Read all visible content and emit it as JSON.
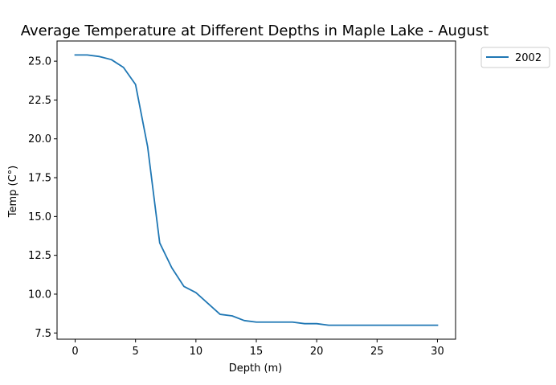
{
  "chart_data": {
    "type": "line",
    "title": "Average Temperature at Different Depths in Maple Lake - August",
    "xlabel": "Depth (m)",
    "ylabel": "Temp (C°)",
    "xlim": [
      -1.5,
      31.5
    ],
    "ylim": [
      7.1,
      26.3
    ],
    "x_ticks": [
      0,
      5,
      10,
      15,
      20,
      25,
      30
    ],
    "x_tick_labels": [
      "0",
      "5",
      "10",
      "15",
      "20",
      "25",
      "30"
    ],
    "y_ticks": [
      7.5,
      10.0,
      12.5,
      15.0,
      17.5,
      20.0,
      22.5,
      25.0
    ],
    "y_tick_labels": [
      "7.5",
      "10.0",
      "12.5",
      "15.0",
      "17.5",
      "20.0",
      "22.5",
      "25.0"
    ],
    "grid": false,
    "legend_position": "outside-top-right",
    "series": [
      {
        "name": "2002",
        "color": "#1f77b4",
        "x": [
          0,
          1,
          2,
          3,
          4,
          5,
          6,
          7,
          8,
          9,
          10,
          11,
          12,
          13,
          14,
          15,
          16,
          17,
          18,
          19,
          20,
          21,
          22,
          23,
          24,
          25,
          26,
          27,
          28,
          29,
          30
        ],
        "values": [
          25.4,
          25.4,
          25.3,
          25.1,
          24.6,
          23.5,
          19.5,
          13.3,
          11.7,
          10.5,
          10.1,
          9.4,
          8.7,
          8.6,
          8.3,
          8.2,
          8.2,
          8.2,
          8.2,
          8.1,
          8.1,
          8.0,
          8.0,
          8.0,
          8.0,
          8.0,
          8.0,
          8.0,
          8.0,
          8.0,
          8.0
        ]
      }
    ]
  }
}
